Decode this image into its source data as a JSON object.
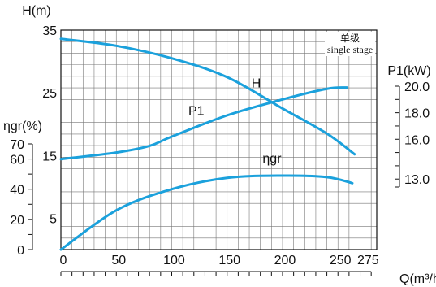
{
  "chart_data": {
    "type": "line",
    "note": {
      "line1": "单级",
      "line2": "single stage"
    },
    "x_axis": {
      "label": "Q(m³/h)",
      "ticks": [
        0,
        50,
        100,
        150,
        200,
        250,
        275
      ],
      "range": [
        0,
        285
      ]
    },
    "y_axis_H": {
      "label": "H(m)",
      "ticks": [
        5,
        15,
        25,
        35
      ],
      "range": [
        0,
        35
      ]
    },
    "y_axis_eta": {
      "label": "ηgr(%)",
      "ticks": [
        0,
        20,
        40,
        60,
        70
      ],
      "range": [
        0,
        70
      ]
    },
    "y_axis_P": {
      "label": "P1(kW)",
      "ticks": [
        13.0,
        16.0,
        18.0,
        20.0
      ],
      "range": [
        12.4,
        20.0
      ]
    },
    "series": [
      {
        "name": "H",
        "axis": "H",
        "points": [
          [
            0,
            33.6
          ],
          [
            50,
            32.5
          ],
          [
            100,
            30.5
          ],
          [
            150,
            27.5
          ],
          [
            200,
            22.5
          ],
          [
            240,
            18.5
          ],
          [
            265,
            15.2
          ]
        ]
      },
      {
        "name": "P1",
        "axis": "P",
        "points": [
          [
            0,
            14.5
          ],
          [
            50,
            15.0
          ],
          [
            80,
            15.5
          ],
          [
            100,
            16.2
          ],
          [
            150,
            17.8
          ],
          [
            200,
            19.0
          ],
          [
            240,
            19.8
          ],
          [
            258,
            19.9
          ]
        ]
      },
      {
        "name": "ηgr",
        "axis": "eta",
        "points": [
          [
            0,
            0
          ],
          [
            50,
            26
          ],
          [
            100,
            40
          ],
          [
            150,
            47.5
          ],
          [
            200,
            49
          ],
          [
            240,
            48
          ],
          [
            263,
            44
          ]
        ]
      }
    ],
    "grid": true
  }
}
